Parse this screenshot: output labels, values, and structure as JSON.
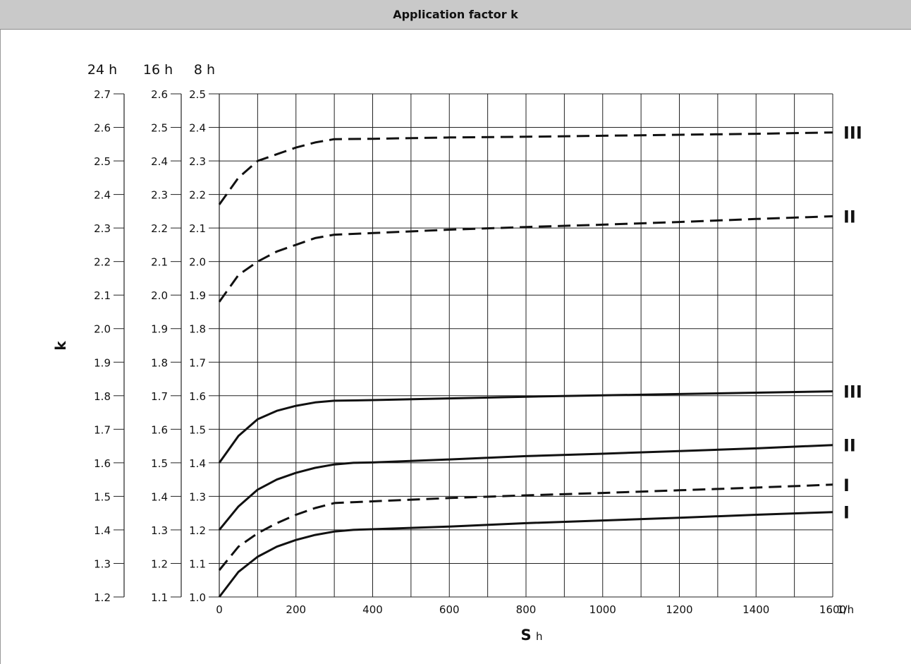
{
  "header": {
    "title": "Application factor k"
  },
  "chart_data": {
    "type": "line",
    "title": "Application factor k",
    "xlabel": "S",
    "xlabel_sub": "h",
    "x_unit": "1/h",
    "ylabel": "k",
    "xlim": [
      0,
      1600
    ],
    "x_ticks": [
      0,
      200,
      400,
      600,
      800,
      1000,
      1200,
      1400,
      1600
    ],
    "x_tick_labels": [
      "0",
      "200",
      "400",
      "600",
      "800",
      "1000",
      "1200",
      "1400",
      "1600"
    ],
    "grid": true,
    "y_axes": [
      {
        "header": "24 h",
        "ylim": [
          1.2,
          2.7
        ],
        "tick_labels": [
          "1.2",
          "1.3",
          "1.4",
          "1.5",
          "1.6",
          "1.7",
          "1.8",
          "1.9",
          "2.0",
          "2.1",
          "2.2",
          "2.3",
          "2.4",
          "2.5",
          "2.6",
          "2.7"
        ]
      },
      {
        "header": "16 h",
        "ylim": [
          1.1,
          2.6
        ],
        "tick_labels": [
          "1.1",
          "1.2",
          "1.3",
          "1.4",
          "1.5",
          "1.6",
          "1.7",
          "1.8",
          "1.9",
          "2.0",
          "2.1",
          "2.2",
          "2.3",
          "2.4",
          "2.5",
          "2.6"
        ]
      },
      {
        "header": "8 h",
        "ylim": [
          1.0,
          2.5
        ],
        "tick_labels": [
          "1.0",
          "1.1",
          "1.2",
          "1.3",
          "1.4",
          "1.5",
          "1.6",
          "1.7",
          "1.8",
          "1.9",
          "2.0",
          "2.1",
          "2.2",
          "2.3",
          "2.4",
          "2.5"
        ]
      }
    ],
    "series": [
      {
        "name": "III",
        "style": "dashed",
        "x": [
          0,
          50,
          100,
          150,
          200,
          250,
          300,
          400,
          600,
          800,
          1000,
          1200,
          1400,
          1600
        ],
        "values": [
          2.17,
          2.25,
          2.3,
          2.32,
          2.34,
          2.355,
          2.365,
          2.366,
          2.37,
          2.372,
          2.375,
          2.378,
          2.381,
          2.385
        ]
      },
      {
        "name": "II",
        "style": "dashed",
        "x": [
          0,
          50,
          100,
          150,
          200,
          250,
          300,
          400,
          600,
          800,
          1000,
          1200,
          1400,
          1600
        ],
        "values": [
          1.88,
          1.96,
          2.0,
          2.03,
          2.05,
          2.07,
          2.08,
          2.085,
          2.095,
          2.103,
          2.11,
          2.118,
          2.127,
          2.135
        ]
      },
      {
        "name": "III",
        "style": "solid",
        "x": [
          0,
          50,
          100,
          150,
          200,
          250,
          300,
          400,
          600,
          800,
          1000,
          1200,
          1400,
          1600
        ],
        "values": [
          1.4,
          1.48,
          1.53,
          1.555,
          1.57,
          1.58,
          1.585,
          1.587,
          1.592,
          1.597,
          1.601,
          1.605,
          1.609,
          1.613
        ]
      },
      {
        "name": "II",
        "style": "solid",
        "x": [
          0,
          50,
          100,
          150,
          200,
          250,
          300,
          350,
          400,
          600,
          800,
          1000,
          1200,
          1400,
          1600
        ],
        "values": [
          1.2,
          1.27,
          1.32,
          1.35,
          1.37,
          1.385,
          1.395,
          1.4,
          1.401,
          1.41,
          1.42,
          1.427,
          1.435,
          1.443,
          1.453
        ]
      },
      {
        "name": "I",
        "style": "dashed",
        "x": [
          0,
          50,
          100,
          150,
          200,
          250,
          300,
          400,
          600,
          800,
          1000,
          1200,
          1400,
          1600
        ],
        "values": [
          1.08,
          1.15,
          1.19,
          1.22,
          1.245,
          1.265,
          1.28,
          1.285,
          1.295,
          1.303,
          1.31,
          1.318,
          1.326,
          1.335
        ]
      },
      {
        "name": "I",
        "style": "solid",
        "x": [
          0,
          50,
          100,
          150,
          200,
          250,
          300,
          350,
          400,
          600,
          800,
          1000,
          1200,
          1400,
          1600
        ],
        "values": [
          1.0,
          1.075,
          1.12,
          1.15,
          1.17,
          1.185,
          1.195,
          1.2,
          1.202,
          1.21,
          1.22,
          1.228,
          1.236,
          1.245,
          1.253
        ]
      }
    ]
  }
}
